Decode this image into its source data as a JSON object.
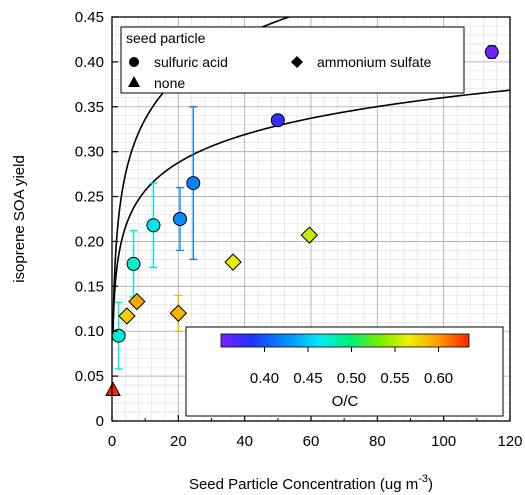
{
  "chart_data": {
    "type": "scatter",
    "xlabel": "Seed Particle Concentration (ug m",
    "xlabel_sup": "-3",
    "xlabel_end": ")",
    "ylabel": "isoprene SOA yield",
    "xlim": [
      0,
      120
    ],
    "ylim": [
      0,
      0.45
    ],
    "x_ticks": [
      "0",
      "20",
      "40",
      "60",
      "80",
      "100",
      "120"
    ],
    "y_ticks": [
      "0",
      "0.05",
      "0.10",
      "0.15",
      "0.20",
      "0.25",
      "0.30",
      "0.35",
      "0.40",
      "0.45"
    ],
    "grid": true,
    "legend": {
      "title": "seed particle",
      "entries": [
        {
          "label": "sulfuric acid",
          "marker": "circle"
        },
        {
          "label": "ammonium sulfate",
          "marker": "diamond"
        },
        {
          "label": "none",
          "marker": "triangle"
        }
      ],
      "position": "top-left"
    },
    "colorbar": {
      "label": "O/C",
      "ticks": [
        "0.40",
        "0.45",
        "0.50",
        "0.55",
        "0.60"
      ],
      "range": [
        0.35,
        0.635
      ],
      "position": "bottom-right"
    },
    "series": [
      {
        "marker": "circle",
        "points": [
          {
            "x": 2.0,
            "y": 0.095,
            "oc": 0.47,
            "err": 0.037
          },
          {
            "x": 6.5,
            "y": 0.175,
            "oc": 0.475,
            "err": 0.037
          },
          {
            "x": 12.5,
            "y": 0.218,
            "oc": 0.46,
            "err": 0.047
          },
          {
            "x": 20.5,
            "y": 0.225,
            "oc": 0.425,
            "err": 0.035
          },
          {
            "x": 24.5,
            "y": 0.265,
            "oc": 0.42,
            "err": 0.085
          },
          {
            "x": 50.0,
            "y": 0.335,
            "oc": 0.375,
            "err": null
          },
          {
            "x": 114.5,
            "y": 0.411,
            "oc": 0.355,
            "err": 0.007
          }
        ]
      },
      {
        "marker": "diamond",
        "points": [
          {
            "x": 4.5,
            "y": 0.117,
            "oc": 0.58,
            "err": null
          },
          {
            "x": 7.5,
            "y": 0.133,
            "oc": 0.595,
            "err": null
          },
          {
            "x": 20.0,
            "y": 0.12,
            "oc": 0.59,
            "err": 0.02
          },
          {
            "x": 36.5,
            "y": 0.177,
            "oc": 0.565,
            "err": null
          },
          {
            "x": 59.5,
            "y": 0.207,
            "oc": 0.555,
            "err": null
          }
        ]
      },
      {
        "marker": "triangle",
        "points": [
          {
            "x": 0.3,
            "y": 0.034,
            "oc": 0.635,
            "err": null
          }
        ]
      }
    ],
    "fits": [
      {
        "for": "sulfuric acid",
        "a": 0.023,
        "b": 0.068,
        "c": 0.1
      },
      {
        "for": "ammonium sulfate",
        "a": 0.03,
        "b": 0.045,
        "c": 0.065
      }
    ]
  }
}
